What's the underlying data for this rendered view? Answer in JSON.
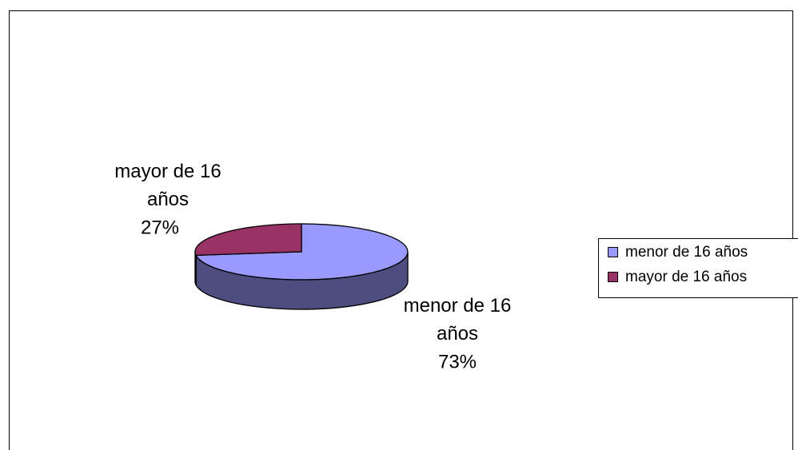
{
  "chart_data": {
    "type": "pie3d",
    "categories": [
      "menor de 16 años",
      "mayor de 16 años"
    ],
    "values": [
      73,
      27
    ],
    "value_labels": [
      "73%",
      "27%"
    ],
    "colors": [
      "#9999ff",
      "#993366"
    ],
    "legend": "right"
  }
}
